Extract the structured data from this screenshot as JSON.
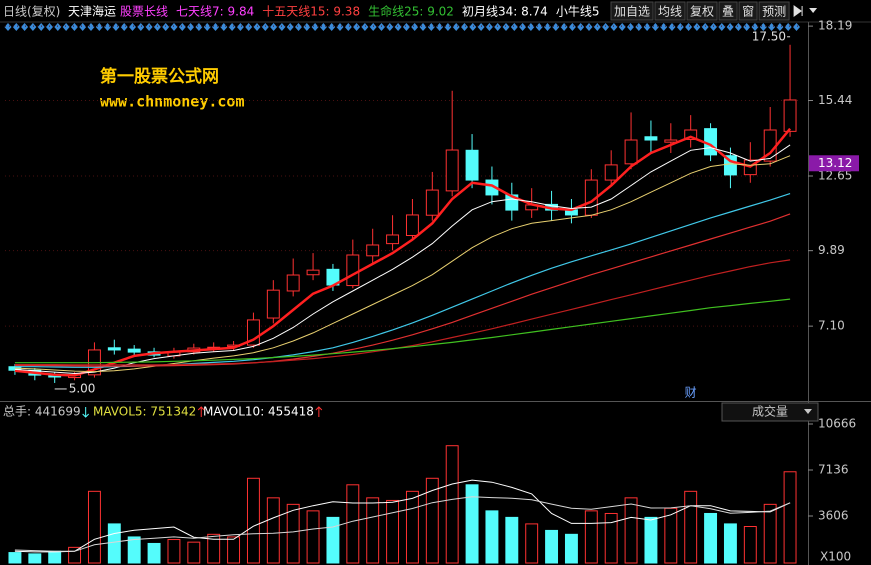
{
  "toolbar": {
    "period": "日线(复权)",
    "stock": "天津海运",
    "indicators": [
      {
        "text": "股票长线",
        "color": "#ff40ff"
      },
      {
        "text": "七天线7: 9.84",
        "color": "#ff40ff"
      },
      {
        "text": "十五天线15: 9.38",
        "color": "#ff4040"
      },
      {
        "text": "生命线25: 9.02",
        "color": "#33c033"
      },
      {
        "text": "初月线34: 8.74",
        "color": "#ffffff"
      },
      {
        "text": "小牛线5",
        "color": "#ffffff"
      }
    ],
    "buttons": [
      "加自选",
      "均线",
      "复权",
      "叠",
      "窗",
      "预测"
    ]
  },
  "watermark": {
    "title": "第一股票公式网",
    "url": "www.chnmoney.com"
  },
  "volume_header": {
    "total": "总手: 441699",
    "mavol5": "MAVOL5: 751342",
    "mavol10": "MAVOL10: 455418",
    "selector": "成交量",
    "unit": "X100"
  },
  "chart_data": [
    {
      "type": "candlestick",
      "categories": [
        null,
        null,
        null,
        null,
        null,
        null,
        null,
        null,
        null,
        null,
        null,
        null,
        null,
        null,
        null,
        null,
        null,
        null,
        null,
        null,
        null,
        null,
        null,
        null,
        null,
        null,
        null,
        null,
        null,
        null,
        null,
        null,
        null,
        null,
        null,
        null,
        null,
        null,
        null,
        null
      ],
      "open": [
        5.6,
        5.47,
        5.3,
        5.2,
        5.3,
        6.3,
        6.25,
        6.15,
        6.0,
        6.15,
        6.3,
        6.35,
        6.4,
        7.4,
        8.4,
        9.0,
        9.2,
        8.6,
        9.7,
        10.15,
        10.45,
        11.2,
        12.1,
        13.6,
        12.5,
        11.95,
        11.4,
        11.6,
        11.4,
        11.2,
        12.5,
        13.1,
        14.1,
        13.9,
        14.0,
        14.4,
        13.4,
        12.7,
        13.2,
        14.3
      ],
      "high": [
        5.7,
        5.55,
        5.4,
        5.4,
        6.5,
        6.6,
        6.4,
        6.3,
        6.3,
        6.45,
        6.5,
        6.55,
        7.6,
        8.8,
        9.6,
        9.8,
        9.4,
        10.3,
        10.7,
        11.2,
        11.8,
        12.8,
        15.8,
        14.2,
        13.0,
        12.4,
        12.2,
        12.1,
        11.8,
        12.9,
        13.6,
        15.0,
        14.7,
        14.6,
        14.9,
        14.6,
        13.7,
        13.9,
        15.2,
        17.5
      ],
      "low": [
        5.3,
        5.1,
        5.0,
        5.1,
        5.2,
        6.05,
        6.0,
        5.95,
        5.9,
        6.05,
        6.15,
        6.2,
        6.3,
        7.2,
        8.2,
        8.8,
        8.4,
        8.5,
        9.4,
        9.9,
        10.3,
        11.0,
        11.9,
        12.2,
        11.6,
        11.0,
        11.1,
        11.0,
        10.9,
        11.1,
        12.3,
        12.9,
        13.5,
        13.5,
        13.7,
        13.2,
        12.2,
        12.4,
        13.0,
        14.1
      ],
      "close": [
        5.47,
        5.29,
        5.22,
        5.29,
        6.22,
        6.22,
        6.14,
        6.03,
        6.14,
        6.29,
        6.32,
        6.4,
        7.33,
        8.43,
        8.99,
        9.17,
        8.62,
        9.73,
        10.1,
        10.47,
        11.21,
        12.13,
        13.61,
        12.5,
        11.95,
        11.39,
        11.58,
        11.39,
        11.21,
        12.5,
        13.06,
        13.98,
        13.98,
        13.98,
        14.35,
        13.43,
        12.69,
        13.24,
        14.35,
        15.46
      ],
      "up_color": "#ff3232",
      "down_color": "#54fcfc",
      "series": [
        {
          "color": "#ff2020",
          "width": 2.5,
          "values": [
            5.45,
            5.38,
            5.3,
            5.28,
            5.5,
            5.75,
            6.0,
            6.1,
            6.15,
            6.2,
            6.25,
            6.3,
            6.6,
            7.1,
            7.7,
            8.3,
            8.6,
            9.0,
            9.4,
            9.8,
            10.3,
            10.9,
            11.8,
            12.4,
            12.3,
            11.9,
            11.6,
            11.45,
            11.4,
            11.7,
            12.3,
            13.0,
            13.5,
            13.8,
            14.1,
            13.8,
            13.2,
            13.0,
            13.5,
            14.4
          ]
        },
        {
          "color": "#ffffff",
          "width": 1,
          "values": [
            5.5,
            5.45,
            5.4,
            5.35,
            5.4,
            5.55,
            5.75,
            5.9,
            6.0,
            6.1,
            6.15,
            6.2,
            6.35,
            6.65,
            7.05,
            7.55,
            8.0,
            8.4,
            8.8,
            9.2,
            9.65,
            10.15,
            10.8,
            11.4,
            11.7,
            11.8,
            11.7,
            11.55,
            11.45,
            11.5,
            11.8,
            12.3,
            12.8,
            13.2,
            13.6,
            13.7,
            13.5,
            13.2,
            13.3,
            13.8
          ]
        },
        {
          "color": "#e8d070",
          "width": 1,
          "values": [
            5.55,
            5.52,
            5.48,
            5.44,
            5.42,
            5.45,
            5.52,
            5.62,
            5.72,
            5.82,
            5.92,
            6.0,
            6.12,
            6.3,
            6.55,
            6.85,
            7.2,
            7.55,
            7.9,
            8.25,
            8.6,
            9.0,
            9.5,
            10.0,
            10.4,
            10.7,
            10.9,
            11.0,
            11.1,
            11.2,
            11.4,
            11.7,
            12.05,
            12.4,
            12.75,
            13.0,
            13.1,
            13.05,
            13.1,
            13.4
          ]
        },
        {
          "color": "#40c8e8",
          "width": 1.2,
          "values": [
            5.6,
            5.6,
            5.59,
            5.58,
            5.58,
            5.6,
            5.62,
            5.65,
            5.68,
            5.72,
            5.76,
            5.8,
            5.86,
            5.94,
            6.04,
            6.16,
            6.3,
            6.5,
            6.72,
            6.96,
            7.22,
            7.5,
            7.8,
            8.1,
            8.4,
            8.7,
            8.98,
            9.24,
            9.48,
            9.7,
            9.92,
            10.14,
            10.38,
            10.62,
            10.86,
            11.1,
            11.32,
            11.54,
            11.76,
            12.0
          ]
        },
        {
          "color": "#e03030",
          "width": 1.2,
          "values": [
            5.65,
            5.65,
            5.64,
            5.63,
            5.62,
            5.62,
            5.62,
            5.63,
            5.64,
            5.66,
            5.68,
            5.7,
            5.74,
            5.8,
            5.88,
            5.98,
            6.1,
            6.24,
            6.4,
            6.58,
            6.78,
            7.0,
            7.24,
            7.5,
            7.76,
            8.02,
            8.28,
            8.52,
            8.76,
            9.0,
            9.22,
            9.44,
            9.66,
            9.88,
            10.1,
            10.32,
            10.54,
            10.76,
            10.98,
            11.25
          ]
        },
        {
          "color": "#c02020",
          "width": 1.2,
          "values": [
            5.68,
            5.68,
            5.68,
            5.67,
            5.67,
            5.67,
            5.67,
            5.67,
            5.68,
            5.69,
            5.7,
            5.72,
            5.75,
            5.79,
            5.84,
            5.9,
            5.97,
            6.05,
            6.15,
            6.26,
            6.38,
            6.52,
            6.68,
            6.84,
            7.0,
            7.18,
            7.36,
            7.54,
            7.72,
            7.9,
            8.08,
            8.26,
            8.44,
            8.62,
            8.8,
            8.98,
            9.14,
            9.3,
            9.44,
            9.55
          ]
        },
        {
          "color": "#40c020",
          "width": 1.2,
          "values": [
            5.75,
            5.75,
            5.75,
            5.75,
            5.75,
            5.76,
            5.77,
            5.78,
            5.8,
            5.82,
            5.84,
            5.87,
            5.9,
            5.94,
            5.98,
            6.03,
            6.08,
            6.14,
            6.2,
            6.27,
            6.34,
            6.42,
            6.5,
            6.59,
            6.68,
            6.78,
            6.88,
            6.98,
            7.08,
            7.18,
            7.28,
            7.38,
            7.48,
            7.58,
            7.68,
            7.78,
            7.86,
            7.94,
            8.02,
            8.1
          ]
        }
      ],
      "ylim": [
        4.37,
        18.49
      ],
      "yticks": [
        {
          "value": 7.1,
          "label": "7.10"
        },
        9.89,
        12.65,
        15.44,
        18.19
      ],
      "grid": true,
      "last_price": 13.12,
      "annotations": {
        "high": "17.50",
        "low": "5.00",
        "marker": "财"
      }
    },
    {
      "type": "bar",
      "categories": [
        null,
        null,
        null,
        null,
        null,
        null,
        null,
        null,
        null,
        null,
        null,
        null,
        null,
        null,
        null,
        null,
        null,
        null,
        null,
        null,
        null,
        null,
        null,
        null,
        null,
        null,
        null,
        null,
        null,
        null,
        null,
        null,
        null,
        null,
        null,
        null,
        null,
        null,
        null,
        null
      ],
      "values": [
        800,
        700,
        900,
        1200,
        5500,
        3000,
        2000,
        1500,
        1800,
        1600,
        2200,
        2000,
        6500,
        5000,
        4500,
        4000,
        3500,
        6000,
        5000,
        4800,
        5500,
        6500,
        9000,
        6000,
        4000,
        3500,
        3000,
        2500,
        2200,
        4000,
        3800,
        5000,
        3500,
        4200,
        5500,
        3800,
        3000,
        2800,
        4500,
        7000
      ],
      "series": [
        {
          "color": "#ffffff",
          "values": [
            900,
            850,
            850,
            900,
            1820,
            2260,
            2520,
            2640,
            2760,
            1980,
            1820,
            1820,
            2820,
            3460,
            4040,
            4400,
            4700,
            4600,
            4600,
            4660,
            4960,
            5560,
            6060,
            6360,
            6200,
            5800,
            5300,
            3800,
            3040,
            3040,
            3100,
            3500,
            3300,
            3700,
            4400,
            4400,
            4000,
            3960,
            3920,
            4620
          ]
        },
        {
          "color": "#d8d8d8",
          "values": [
            1000,
            950,
            900,
            900,
            1400,
            1600,
            1800,
            1900,
            2000,
            1900,
            2040,
            2160,
            2240,
            2290,
            2390,
            2610,
            2760,
            3210,
            3530,
            3850,
            4180,
            4630,
            4880,
            5080,
            5020,
            4970,
            4860,
            4520,
            4200,
            4130,
            4330,
            4530,
            4220,
            4230,
            4400,
            4170,
            3820,
            3880,
            3980,
            4620
          ]
        }
      ],
      "ylim": [
        0,
        12200
      ],
      "yticks": [
        3606,
        7136,
        10666
      ]
    }
  ]
}
